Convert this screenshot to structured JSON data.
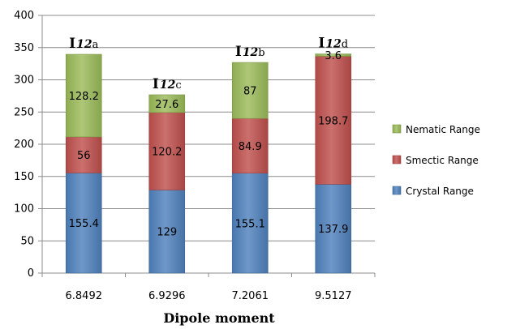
{
  "chart_data": {
    "type": "bar",
    "stacked": true,
    "categories": [
      "6.8492",
      "6.9296",
      "7.2061",
      "9.5127"
    ],
    "series": [
      {
        "name": "Crystal Range",
        "values": [
          155.4,
          129,
          155.1,
          137.9
        ],
        "labels": [
          "155.4",
          "129",
          "155.1",
          "137.9"
        ],
        "color": "#4F81BD"
      },
      {
        "name": "Smectic Range",
        "values": [
          56,
          120.2,
          84.9,
          198.7
        ],
        "labels": [
          "56",
          "120.2",
          "84.9",
          "198.7"
        ],
        "color": "#C0504D"
      },
      {
        "name": "Nematic Range",
        "values": [
          128.2,
          27.6,
          87,
          3.6
        ],
        "labels": [
          "128.2",
          "27.6",
          "87",
          "3.6"
        ],
        "color": "#9BBB59"
      }
    ],
    "annotations": [
      {
        "main": "I",
        "num": "12",
        "suffix": "a"
      },
      {
        "main": "I",
        "num": "12",
        "suffix": "c"
      },
      {
        "main": "I",
        "num": "12",
        "suffix": "b"
      },
      {
        "main": "I",
        "num": "12",
        "suffix": "d"
      }
    ],
    "xlabel": "Dipole moment",
    "ylabel": "",
    "ylim": [
      0,
      400
    ],
    "yticks": [
      0,
      50,
      100,
      150,
      200,
      250,
      300,
      350,
      400
    ],
    "grid": true,
    "legend_position": "right",
    "legend_order": [
      "Nematic Range",
      "Smectic Range",
      "Crystal Range"
    ]
  }
}
